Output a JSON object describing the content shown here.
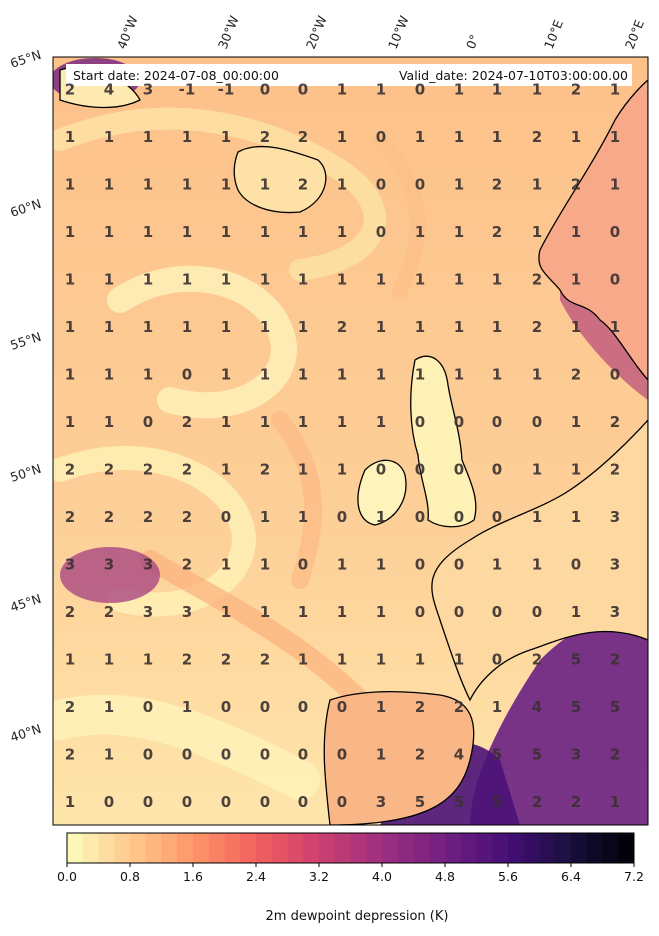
{
  "header": {
    "start_label": "Start date: 2024-07-08_00:00:00",
    "valid_label": "Valid_date: 2024-07-10T03:00:00.00"
  },
  "lon_labels": [
    "40°W",
    "30°W",
    "20°W",
    "10°W",
    "0°",
    "10°E",
    "20°E"
  ],
  "lat_labels": [
    "65°N",
    "60°N",
    "55°N",
    "50°N",
    "45°N",
    "40°N"
  ],
  "grid_values": [
    [
      "2",
      "4",
      "3",
      "-1",
      "-1",
      "0",
      "0",
      "1",
      "1",
      "0",
      "1",
      "1",
      "1",
      "2",
      "1"
    ],
    [
      "1",
      "1",
      "1",
      "1",
      "1",
      "2",
      "2",
      "1",
      "0",
      "1",
      "1",
      "1",
      "2",
      "1",
      "1"
    ],
    [
      "1",
      "1",
      "1",
      "1",
      "1",
      "1",
      "2",
      "1",
      "0",
      "0",
      "1",
      "2",
      "1",
      "2",
      "1"
    ],
    [
      "1",
      "1",
      "1",
      "1",
      "1",
      "1",
      "1",
      "1",
      "0",
      "1",
      "1",
      "2",
      "1",
      "1",
      "0"
    ],
    [
      "1",
      "1",
      "1",
      "1",
      "1",
      "1",
      "1",
      "1",
      "1",
      "1",
      "1",
      "1",
      "2",
      "1",
      "0"
    ],
    [
      "1",
      "1",
      "1",
      "1",
      "1",
      "1",
      "1",
      "2",
      "1",
      "1",
      "1",
      "1",
      "2",
      "1",
      "1"
    ],
    [
      "1",
      "1",
      "1",
      "0",
      "1",
      "1",
      "1",
      "1",
      "1",
      "1",
      "1",
      "1",
      "1",
      "2",
      "0"
    ],
    [
      "1",
      "1",
      "0",
      "2",
      "1",
      "1",
      "1",
      "1",
      "1",
      "0",
      "0",
      "0",
      "0",
      "1",
      "2"
    ],
    [
      "2",
      "2",
      "2",
      "2",
      "1",
      "2",
      "1",
      "1",
      "0",
      "0",
      "0",
      "0",
      "1",
      "1",
      "2"
    ],
    [
      "2",
      "2",
      "2",
      "2",
      "0",
      "1",
      "1",
      "0",
      "1",
      "0",
      "0",
      "0",
      "1",
      "1",
      "3"
    ],
    [
      "3",
      "3",
      "3",
      "2",
      "1",
      "1",
      "0",
      "1",
      "1",
      "0",
      "0",
      "1",
      "1",
      "0",
      "3"
    ],
    [
      "2",
      "2",
      "3",
      "3",
      "1",
      "1",
      "1",
      "1",
      "1",
      "0",
      "0",
      "0",
      "0",
      "1",
      "3"
    ],
    [
      "1",
      "1",
      "1",
      "2",
      "2",
      "2",
      "1",
      "1",
      "1",
      "1",
      "1",
      "0",
      "2",
      "5",
      "2"
    ],
    [
      "2",
      "1",
      "0",
      "1",
      "0",
      "0",
      "0",
      "0",
      "1",
      "2",
      "2",
      "1",
      "4",
      "5",
      "5"
    ],
    [
      "2",
      "1",
      "0",
      "0",
      "0",
      "0",
      "0",
      "0",
      "1",
      "2",
      "4",
      "5",
      "5",
      "3",
      "2"
    ],
    [
      "1",
      "0",
      "0",
      "0",
      "0",
      "0",
      "0",
      "0",
      "3",
      "5",
      "5",
      "5",
      "2",
      "2",
      "1"
    ]
  ],
  "colorbar": {
    "label": "2m dewpoint depression (K)",
    "ticks": [
      "0.0",
      "0.8",
      "1.6",
      "2.4",
      "3.2",
      "4.0",
      "4.8",
      "5.6",
      "6.4",
      "7.2"
    ],
    "min": 0,
    "max": 7.2,
    "colormap": "magma_r",
    "colors": [
      "#fcfdbf",
      "#feca8d",
      "#fd9668",
      "#f1605d",
      "#cd4071",
      "#9e2f7f",
      "#721f81",
      "#440f76",
      "#180f3d",
      "#000004"
    ]
  }
}
